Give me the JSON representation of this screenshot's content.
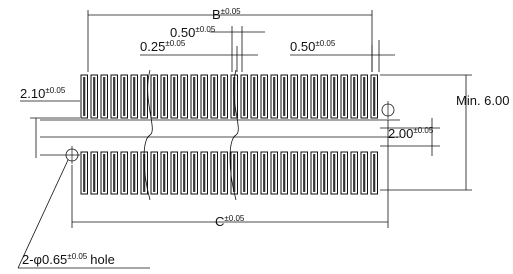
{
  "dimensions": {
    "b": {
      "label": "B",
      "tolerance": "±0.05"
    },
    "pitch": {
      "label": "0.50",
      "tolerance": "±0.05"
    },
    "slot": {
      "label": "0.25",
      "tolerance": "±0.05"
    },
    "pad_width": {
      "label": "0.50",
      "tolerance": "±0.05"
    },
    "row_offset": {
      "label": "2.10",
      "tolerance": "±0.05"
    },
    "min_length": {
      "label": "Min. 6.00"
    },
    "row_gap": {
      "label": "2.00",
      "tolerance": "±0.05"
    },
    "c": {
      "label": "C",
      "tolerance": "±0.05"
    },
    "hole": {
      "label": "2-φ0.65",
      "tolerance": "±0.05",
      "suffix": "hole"
    }
  }
}
